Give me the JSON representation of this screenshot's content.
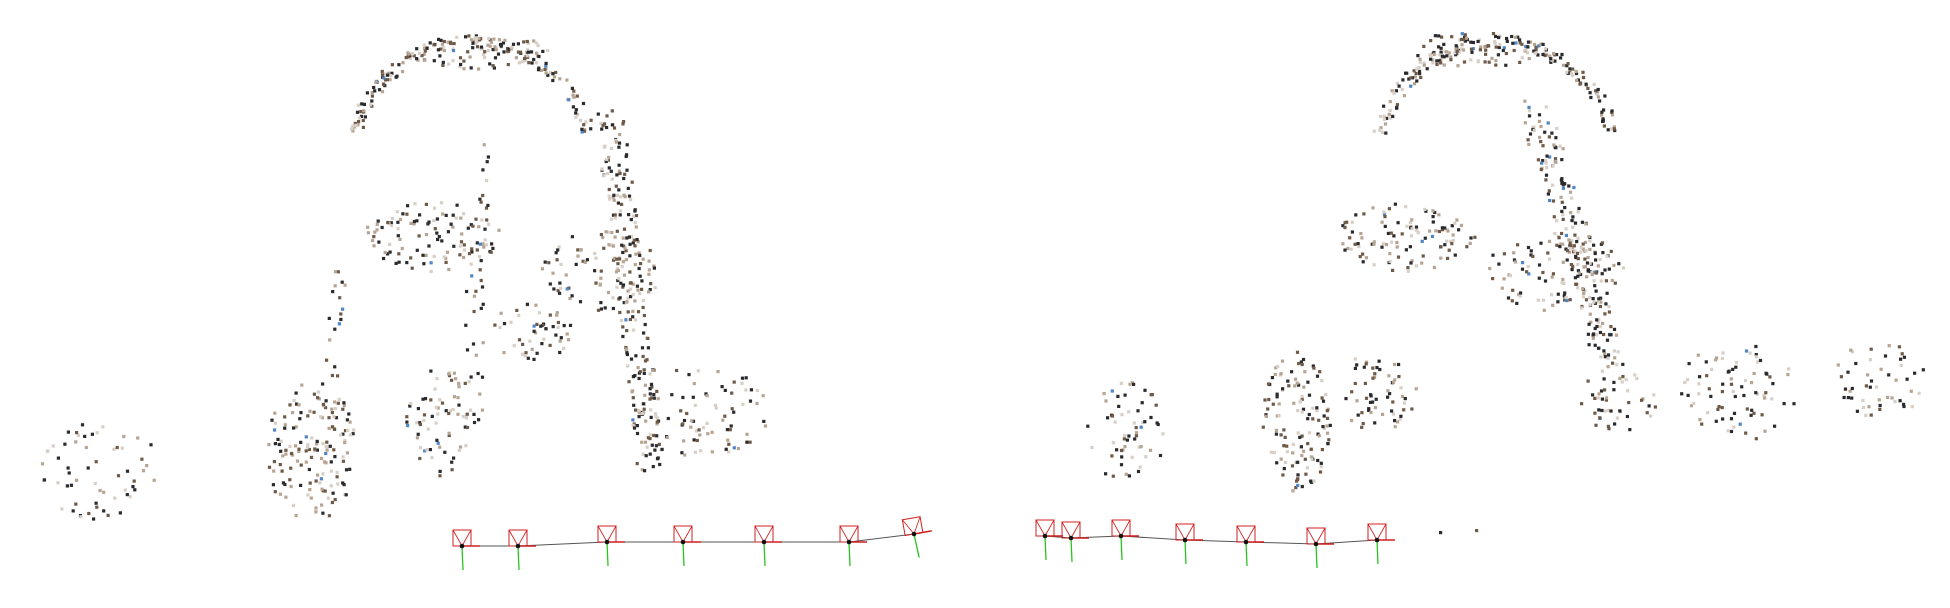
{
  "figure": {
    "panels": [
      {
        "id": "left",
        "view": "sparse-point-cloud-with-camera-trajectory",
        "camera_count": 7
      },
      {
        "id": "right",
        "view": "sparse-point-cloud-with-camera-trajectory",
        "camera_count": 7
      }
    ],
    "colors": {
      "background": "#ffffff",
      "point_dark": "#2b2b2e",
      "point_brown": "#6f5a48",
      "point_tan": "#b7a594",
      "point_light": "#d8cfc7",
      "point_blue": "#4f86c6",
      "camera_frustum": "#d01f1f",
      "camera_up_axis": "#27c41f",
      "camera_body": "#111111",
      "trajectory": "#555555"
    }
  }
}
